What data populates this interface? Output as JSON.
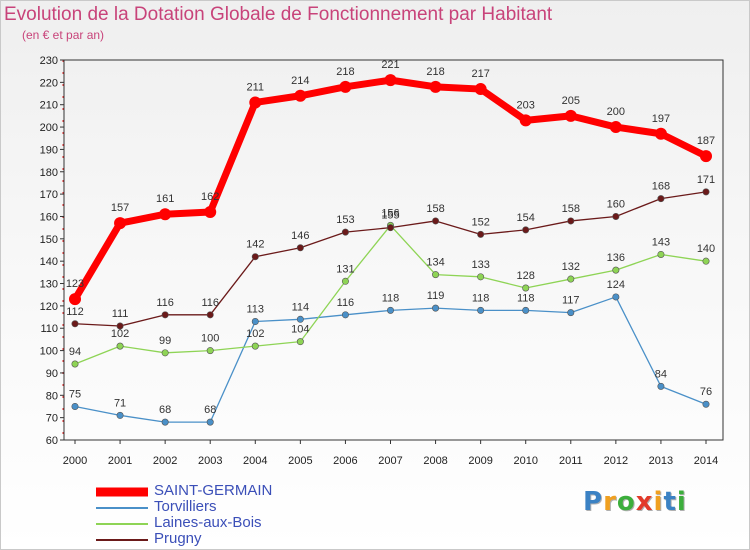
{
  "title": "Evolution de la Dotation Globale de Fonctionnement par Habitant",
  "subtitle": "(en € et par an)",
  "logo": {
    "text": "Proxiti",
    "letters": [
      "P",
      "r",
      "o",
      "x",
      "i",
      "t",
      "i"
    ],
    "colors": [
      "#3b82c4",
      "#f0a020",
      "#3cae3c",
      "#e23a2a",
      "#f0a020",
      "#3b82c4",
      "#3cae3c"
    ]
  },
  "chart_data": {
    "type": "line",
    "title": "Evolution de la Dotation Globale de Fonctionnement par Habitant",
    "subtitle": "(en € et par an)",
    "xlabel": "",
    "ylabel": "",
    "x": [
      "2000",
      "2001",
      "2002",
      "2003",
      "2004",
      "2005",
      "2006",
      "2007",
      "2008",
      "2009",
      "2010",
      "2011",
      "2012",
      "2013",
      "2014"
    ],
    "ylim": [
      60,
      230
    ],
    "yticks": [
      60,
      70,
      80,
      90,
      100,
      110,
      120,
      130,
      140,
      150,
      160,
      170,
      180,
      190,
      200,
      210,
      220,
      230
    ],
    "grid": false,
    "legend_position": "bottom-left",
    "series": [
      {
        "name": "SAINT-GERMAIN",
        "color": "#ff0000",
        "emphasis": true,
        "values": [
          123,
          157,
          161,
          162,
          211,
          214,
          218,
          221,
          218,
          217,
          203,
          205,
          200,
          197,
          187
        ]
      },
      {
        "name": "Torvilliers",
        "color": "#4a90c8",
        "values": [
          75,
          71,
          68,
          68,
          113,
          114,
          116,
          118,
          119,
          118,
          118,
          117,
          124,
          84,
          76
        ]
      },
      {
        "name": "Laines-aux-Bois",
        "color": "#8ed455",
        "values": [
          94,
          102,
          99,
          100,
          102,
          104,
          131,
          156,
          134,
          133,
          128,
          132,
          136,
          143,
          140
        ]
      },
      {
        "name": "Prugny",
        "color": "#6b1a1a",
        "values": [
          112,
          111,
          116,
          116,
          142,
          146,
          153,
          155,
          158,
          152,
          154,
          158,
          160,
          168,
          171
        ]
      }
    ]
  }
}
